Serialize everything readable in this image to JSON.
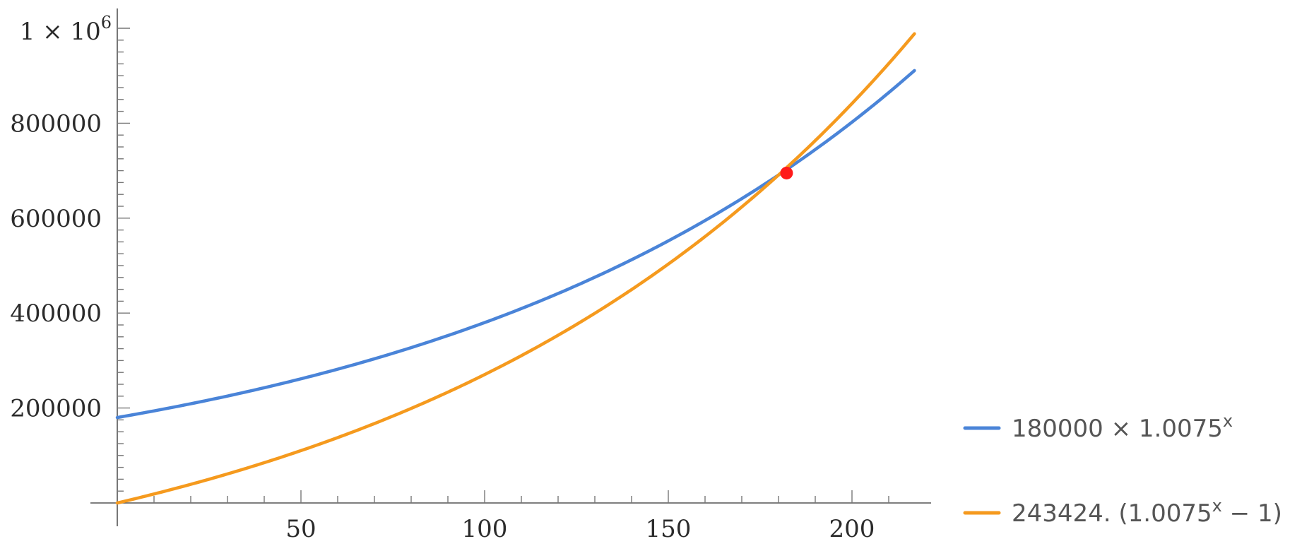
{
  "chart_data": {
    "type": "line",
    "title": "",
    "xlabel": "",
    "ylabel": "",
    "xlim": [
      0,
      220
    ],
    "ylim": [
      0,
      1000000
    ],
    "x_ticks": [
      50,
      100,
      150,
      200
    ],
    "x_tick_labels": [
      "50",
      "100",
      "150",
      "200"
    ],
    "y_ticks": [
      200000,
      400000,
      600000,
      800000
    ],
    "y_tick_labels": [
      "200000",
      "400000",
      "600000",
      "800000"
    ],
    "y_top_label": {
      "base": "1 × 10",
      "exponent": "6"
    },
    "grid": false,
    "legend_position": "bottom-right",
    "series": [
      {
        "name": "180000 × 1.0075^x",
        "legend": {
          "prefix": "180000 × 1.0075",
          "sup": "x",
          "suffix": ""
        },
        "color": "#4a84d8",
        "formula": {
          "a": 180000,
          "b": 1.0075,
          "kind": "a*b^x"
        },
        "x_range": [
          0,
          217
        ]
      },
      {
        "name": "243424. (1.0075^x − 1)",
        "legend": {
          "prefix": "243424. (1.0075",
          "sup": "x",
          "suffix": " − 1)"
        },
        "color": "#f59a1e",
        "formula": {
          "a": 243424,
          "b": 1.0075,
          "kind": "a*(b^x-1)"
        },
        "x_range": [
          0,
          217
        ]
      }
    ],
    "annotations": [
      {
        "type": "point",
        "x": 182.2,
        "y": 695000,
        "color": "#ff1a1a",
        "label": ""
      }
    ]
  }
}
